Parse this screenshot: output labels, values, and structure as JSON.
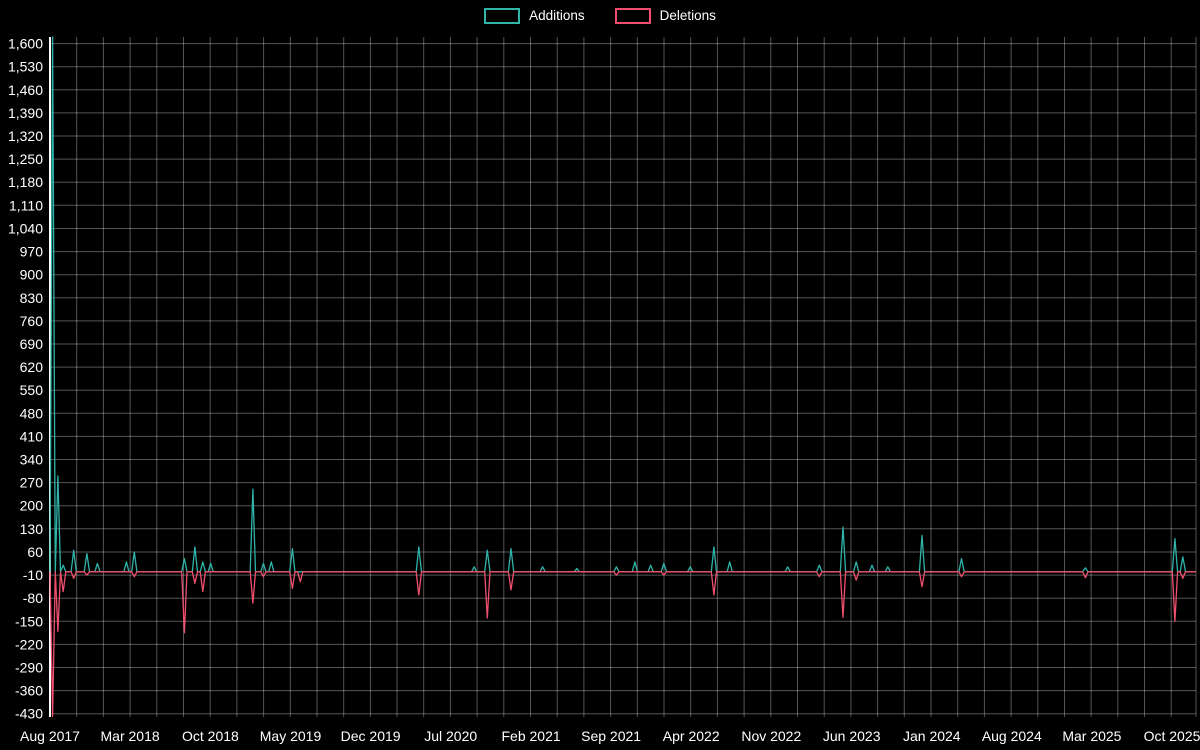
{
  "page": {
    "background_color": "#000000"
  },
  "chart_data": {
    "type": "line",
    "legend_position": "top-center",
    "grid": true,
    "background_color": "#000000",
    "grid_color": "rgba(255,255,255,0.33)",
    "axis_color": "#ffffff",
    "text_color": "#ffffff",
    "ylim": [
      -440,
      1620
    ],
    "y_tick_step": 70,
    "y_ticks": [
      1600,
      1530,
      1460,
      1390,
      1320,
      1250,
      1180,
      1110,
      1040,
      970,
      900,
      830,
      760,
      690,
      620,
      550,
      480,
      410,
      340,
      270,
      200,
      130,
      60,
      -10,
      -80,
      -150,
      -220,
      -290,
      -360,
      -430
    ],
    "x_axis_unit": "weeks",
    "total_weeks": 435,
    "x_tick_labels": [
      "Aug 2017",
      "Mar 2018",
      "Oct 2018",
      "May 2019",
      "Dec 2019",
      "Jul 2020",
      "Feb 2021",
      "Sep 2021",
      "Apr 2022",
      "Nov 2022",
      "Jun 2023",
      "Jan 2024",
      "Aug 2024",
      "Mar 2025",
      "Oct 2025"
    ],
    "x_tick_weeks": [
      0,
      30.4,
      60.9,
      91.3,
      121.7,
      152.1,
      182.6,
      213.0,
      243.4,
      273.8,
      304.3,
      334.7,
      365.1,
      395.5,
      425.9
    ],
    "points_format": "[week_index, value]; weeks not listed have value 0",
    "series": [
      {
        "name": "Additions",
        "color": "#2fb4aa",
        "baseline": 0,
        "nonzero_points": [
          [
            1,
            1620
          ],
          [
            3,
            290
          ],
          [
            5,
            20
          ],
          [
            9,
            65
          ],
          [
            14,
            55
          ],
          [
            18,
            25
          ],
          [
            29,
            30
          ],
          [
            32,
            60
          ],
          [
            51,
            40
          ],
          [
            55,
            75
          ],
          [
            58,
            30
          ],
          [
            61,
            25
          ],
          [
            77,
            250
          ],
          [
            81,
            25
          ],
          [
            84,
            30
          ],
          [
            92,
            70
          ],
          [
            140,
            75
          ],
          [
            161,
            15
          ],
          [
            166,
            65
          ],
          [
            175,
            70
          ],
          [
            187,
            15
          ],
          [
            200,
            10
          ],
          [
            215,
            15
          ],
          [
            222,
            30
          ],
          [
            228,
            20
          ],
          [
            233,
            25
          ],
          [
            243,
            15
          ],
          [
            252,
            75
          ],
          [
            258,
            30
          ],
          [
            280,
            15
          ],
          [
            292,
            20
          ],
          [
            301,
            135
          ],
          [
            306,
            30
          ],
          [
            312,
            20
          ],
          [
            318,
            15
          ],
          [
            331,
            110
          ],
          [
            346,
            40
          ],
          [
            393,
            12
          ],
          [
            427,
            100
          ],
          [
            430,
            45
          ]
        ]
      },
      {
        "name": "Deletions",
        "color": "#f0506e",
        "baseline": 0,
        "nonzero_points": [
          [
            1,
            -438
          ],
          [
            3,
            -180
          ],
          [
            5,
            -60
          ],
          [
            9,
            -20
          ],
          [
            14,
            -10
          ],
          [
            32,
            -15
          ],
          [
            51,
            -185
          ],
          [
            55,
            -35
          ],
          [
            58,
            -60
          ],
          [
            77,
            -95
          ],
          [
            81,
            -15
          ],
          [
            92,
            -50
          ],
          [
            95,
            -30
          ],
          [
            140,
            -70
          ],
          [
            166,
            -140
          ],
          [
            175,
            -55
          ],
          [
            215,
            -10
          ],
          [
            233,
            -10
          ],
          [
            252,
            -70
          ],
          [
            292,
            -15
          ],
          [
            301,
            -138
          ],
          [
            306,
            -25
          ],
          [
            331,
            -45
          ],
          [
            346,
            -15
          ],
          [
            393,
            -18
          ],
          [
            427,
            -150
          ],
          [
            430,
            -20
          ]
        ]
      }
    ]
  }
}
